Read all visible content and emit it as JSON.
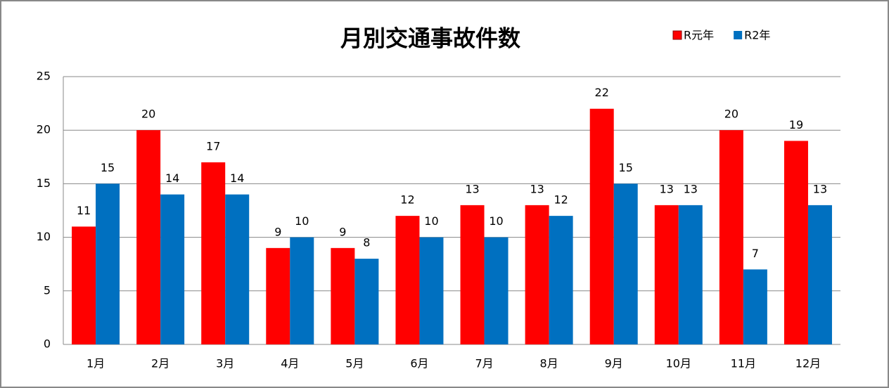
{
  "chart_data": {
    "type": "bar",
    "title": "月別交通事故件数",
    "categories": [
      "1月",
      "2月",
      "3月",
      "4月",
      "5月",
      "6月",
      "7月",
      "8月",
      "9月",
      "10月",
      "11月",
      "12月"
    ],
    "series": [
      {
        "name": "R元年",
        "color": "#ff0000",
        "values": [
          11,
          20,
          17,
          9,
          9,
          12,
          13,
          13,
          22,
          13,
          20,
          19
        ]
      },
      {
        "name": "R2年",
        "color": "#0070c0",
        "values": [
          15,
          14,
          14,
          10,
          8,
          10,
          10,
          12,
          15,
          13,
          7,
          13
        ]
      }
    ],
    "ylim": [
      0,
      25
    ],
    "yticks": [
      0,
      5,
      10,
      15,
      20,
      25
    ],
    "grid": true,
    "legend": "top-right"
  }
}
